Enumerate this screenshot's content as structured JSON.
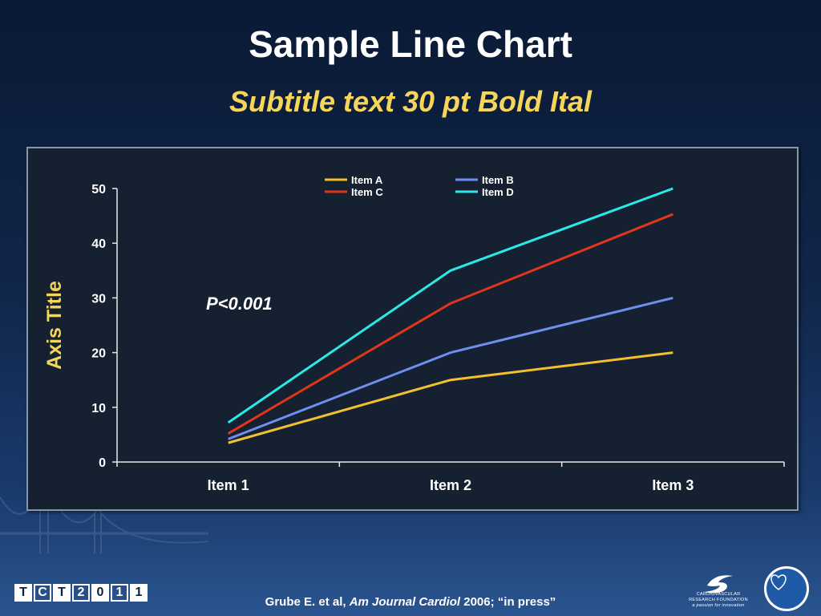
{
  "slide": {
    "title": "Sample Line Chart",
    "subtitle": "Subtitle text 30 pt Bold Ital",
    "annotation": "P<0.001",
    "citation": {
      "author": "Grube E. et al,",
      "journal": "Am Journal Cardiol",
      "rest": "2006; “in press”"
    },
    "logo_tct": [
      "T",
      "C",
      "T",
      "2",
      "0",
      "1",
      "1"
    ],
    "crf_text": [
      "CARDIOVASCULAR",
      "RESEARCH FOUNDATION",
      "a passion for innovation"
    ]
  },
  "colors": {
    "title": "#ffffff",
    "subtitle": "#f5d55a",
    "axis_title": "#f5d55a",
    "plot_bg": "#152130"
  },
  "chart_data": {
    "type": "line",
    "categories": [
      "Item 1",
      "Item 2",
      "Item 3"
    ],
    "ylabel": "Axis Title",
    "ylim": [
      0,
      50
    ],
    "yticks": [
      0,
      10,
      20,
      30,
      40,
      50
    ],
    "grid": false,
    "legend_position": "top",
    "series": [
      {
        "name": "Item A",
        "color": "#f2c12e",
        "values": [
          3.5,
          15,
          20
        ]
      },
      {
        "name": "Item B",
        "color": "#6f8ff0",
        "values": [
          4.2,
          20,
          30
        ]
      },
      {
        "name": "Item C",
        "color": "#e0351a",
        "values": [
          5.2,
          29,
          45.3
        ]
      },
      {
        "name": "Item D",
        "color": "#2ce8e8",
        "values": [
          7.2,
          35,
          50
        ]
      }
    ]
  }
}
